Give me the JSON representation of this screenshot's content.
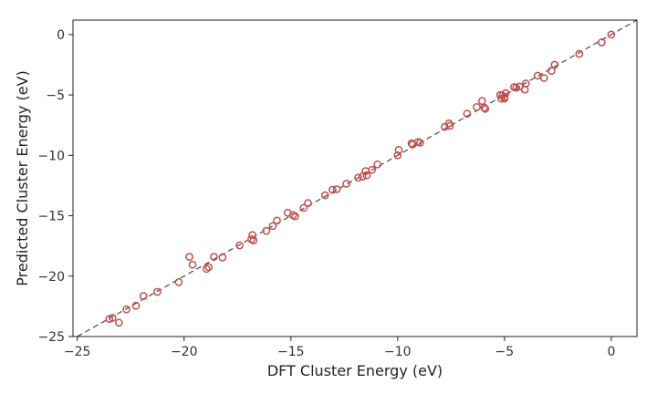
{
  "chart_data": {
    "type": "scatter",
    "title": "",
    "xlabel": "DFT Cluster Energy (eV)",
    "ylabel": "Predicted Cluster Energy (eV)",
    "xlim": [
      -25.2,
      1.2
    ],
    "ylim": [
      -25.0,
      1.2
    ],
    "xticks": [
      -25,
      -20,
      -15,
      -10,
      -5,
      0
    ],
    "yticks": [
      0,
      -5,
      -10,
      -15,
      -20,
      -25
    ],
    "grid": false,
    "marker_color": "#c0504d",
    "reference_line": {
      "style": "dashed",
      "color": "#555555",
      "from": [
        -25.2,
        -25.2
      ],
      "to": [
        1.2,
        1.2
      ]
    },
    "points": [
      [
        0.0,
        0.0
      ],
      [
        -0.45,
        -0.65
      ],
      [
        -1.5,
        -1.6
      ],
      [
        -2.65,
        -2.5
      ],
      [
        -2.8,
        -3.0
      ],
      [
        -3.15,
        -3.6
      ],
      [
        -3.45,
        -3.4
      ],
      [
        -4.0,
        -4.05
      ],
      [
        -4.05,
        -4.55
      ],
      [
        -4.3,
        -4.3
      ],
      [
        -4.45,
        -4.4
      ],
      [
        -4.55,
        -4.35
      ],
      [
        -4.95,
        -4.85
      ],
      [
        -5.0,
        -5.3
      ],
      [
        -5.1,
        -5.05
      ],
      [
        -5.15,
        -5.3
      ],
      [
        -5.2,
        -5.0
      ],
      [
        -5.0,
        -5.2
      ],
      [
        -5.9,
        -6.15
      ],
      [
        -5.95,
        -6.05
      ],
      [
        -6.05,
        -5.5
      ],
      [
        -6.3,
        -6.0
      ],
      [
        -6.75,
        -6.55
      ],
      [
        -7.55,
        -7.55
      ],
      [
        -7.6,
        -7.35
      ],
      [
        -7.8,
        -7.65
      ],
      [
        -8.95,
        -8.95
      ],
      [
        -9.05,
        -8.9
      ],
      [
        -9.3,
        -9.1
      ],
      [
        -9.35,
        -9.0
      ],
      [
        -9.95,
        -9.55
      ],
      [
        -10.0,
        -10.0
      ],
      [
        -10.95,
        -10.75
      ],
      [
        -11.2,
        -11.2
      ],
      [
        -11.45,
        -11.65
      ],
      [
        -11.5,
        -11.3
      ],
      [
        -11.65,
        -11.75
      ],
      [
        -11.85,
        -11.85
      ],
      [
        -12.4,
        -12.35
      ],
      [
        -12.85,
        -12.8
      ],
      [
        -13.05,
        -12.85
      ],
      [
        -13.4,
        -13.3
      ],
      [
        -14.2,
        -13.95
      ],
      [
        -14.4,
        -14.35
      ],
      [
        -14.8,
        -15.05
      ],
      [
        -14.9,
        -14.95
      ],
      [
        -15.15,
        -14.75
      ],
      [
        -15.65,
        -15.4
      ],
      [
        -15.85,
        -15.85
      ],
      [
        -16.15,
        -16.25
      ],
      [
        -16.75,
        -17.05
      ],
      [
        -16.8,
        -16.6
      ],
      [
        -16.85,
        -16.95
      ],
      [
        -17.4,
        -17.45
      ],
      [
        -18.2,
        -18.45
      ],
      [
        -18.6,
        -18.4
      ],
      [
        -18.85,
        -19.25
      ],
      [
        -18.95,
        -19.4
      ],
      [
        -19.6,
        -19.05
      ],
      [
        -19.75,
        -18.4
      ],
      [
        -20.25,
        -20.5
      ],
      [
        -21.25,
        -21.3
      ],
      [
        -21.9,
        -21.65
      ],
      [
        -22.25,
        -22.45
      ],
      [
        -22.7,
        -22.75
      ],
      [
        -23.05,
        -23.85
      ],
      [
        -23.35,
        -23.45
      ],
      [
        -23.5,
        -23.55
      ]
    ]
  }
}
